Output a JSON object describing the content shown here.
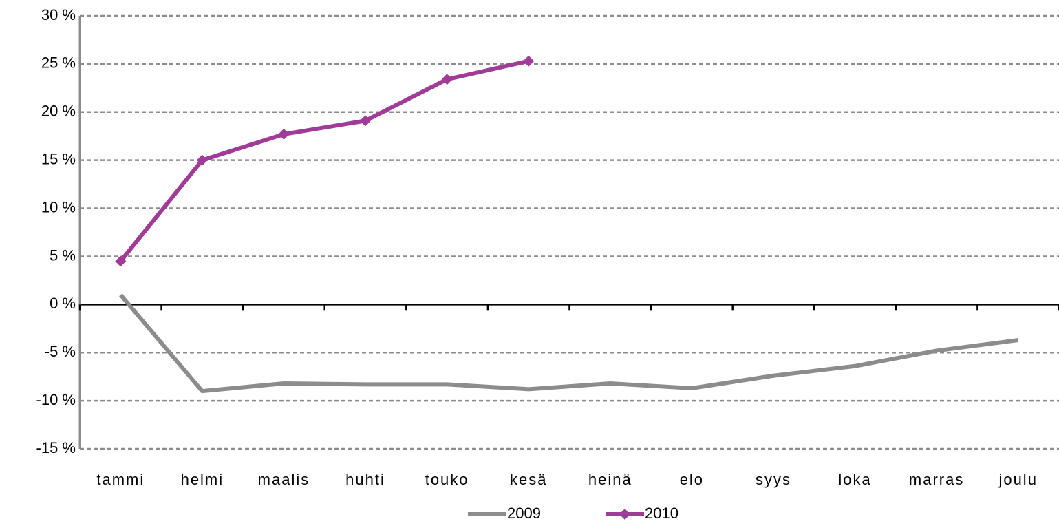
{
  "chart_data": {
    "type": "line",
    "categories": [
      "tammi",
      "helmi",
      "maalis",
      "huhti",
      "touko",
      "kesä",
      "heinä",
      "elo",
      "syys",
      "loka",
      "marras",
      "joulu"
    ],
    "series": [
      {
        "name": "2009",
        "color": "#8c8c8c",
        "values": [
          1.0,
          -9.0,
          -8.2,
          -8.3,
          -8.3,
          -8.8,
          -8.2,
          -8.7,
          -7.4,
          -6.4,
          -4.8,
          -3.7
        ]
      },
      {
        "name": "2010",
        "color": "#a03b97",
        "marker": "diamond",
        "values": [
          4.5,
          15.0,
          17.7,
          19.1,
          23.4,
          25.3,
          null,
          null,
          null,
          null,
          null,
          null
        ]
      }
    ],
    "ylim": [
      -15,
      30
    ],
    "yticks": [
      {
        "value": -15,
        "label": "-15 %"
      },
      {
        "value": -10,
        "label": "-10 %"
      },
      {
        "value": -5,
        "label": "-5 %"
      },
      {
        "value": 0,
        "label": "0 %"
      },
      {
        "value": 5,
        "label": "5 %"
      },
      {
        "value": 10,
        "label": "10 %"
      },
      {
        "value": 15,
        "label": "15 %"
      },
      {
        "value": 20,
        "label": "20 %"
      },
      {
        "value": 25,
        "label": "25 %"
      },
      {
        "value": 30,
        "label": "30 %"
      }
    ],
    "grid": true,
    "legend": "bottom"
  }
}
